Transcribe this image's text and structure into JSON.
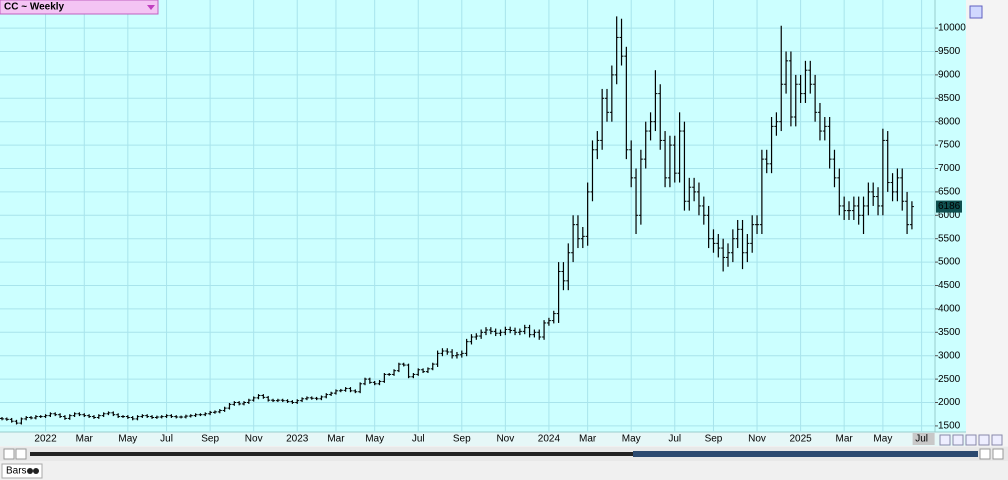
{
  "chart_data": {
    "type": "ohlc",
    "title": "CC ~ Weekly",
    "status_label": "Bars",
    "ylim": [
      1370,
      10600
    ],
    "yticks": [
      1500,
      2000,
      2500,
      3000,
      3500,
      4000,
      4500,
      5000,
      5500,
      6000,
      6500,
      7000,
      7500,
      8000,
      8500,
      9000,
      9500,
      10000
    ],
    "grid": true,
    "color": "#000000",
    "background": "#ccffff",
    "year_label_color": "#1a1aaa",
    "categories": [
      null,
      null,
      null,
      null,
      null,
      null,
      null,
      null,
      null,
      "2022",
      null,
      null,
      null,
      null,
      null,
      null,
      null,
      "Mar",
      null,
      null,
      null,
      null,
      null,
      null,
      null,
      null,
      "May",
      null,
      null,
      null,
      null,
      null,
      null,
      null,
      "Jul",
      null,
      null,
      null,
      null,
      null,
      null,
      null,
      null,
      "Sep",
      null,
      null,
      null,
      null,
      null,
      null,
      null,
      null,
      "Nov",
      null,
      null,
      null,
      null,
      null,
      null,
      null,
      null,
      "2023",
      null,
      null,
      null,
      null,
      null,
      null,
      null,
      "Mar",
      null,
      null,
      null,
      null,
      null,
      null,
      null,
      "May",
      null,
      null,
      null,
      null,
      null,
      null,
      null,
      null,
      "Jul",
      null,
      null,
      null,
      null,
      null,
      null,
      null,
      null,
      "Sep",
      null,
      null,
      null,
      null,
      null,
      null,
      null,
      null,
      "Nov",
      null,
      null,
      null,
      null,
      null,
      null,
      null,
      null,
      "2024",
      null,
      null,
      null,
      null,
      null,
      null,
      null,
      "Mar",
      null,
      null,
      null,
      null,
      null,
      null,
      null,
      null,
      "May",
      null,
      null,
      null,
      null,
      null,
      null,
      null,
      null,
      "Jul",
      null,
      null,
      null,
      null,
      null,
      null,
      null,
      "Sep",
      null,
      null,
      null,
      null,
      null,
      null,
      null,
      null,
      "Nov",
      null,
      null,
      null,
      null,
      null,
      null,
      null,
      null,
      "2025",
      null,
      null,
      null,
      null,
      null,
      null,
      null,
      null,
      "Mar",
      null,
      null,
      null,
      null,
      null,
      null,
      null,
      "May",
      null,
      null,
      null,
      null,
      null,
      null,
      null,
      "Jul"
    ],
    "open": [
      1660,
      1650,
      1640,
      1600,
      1560,
      1650,
      1680,
      1670,
      1700,
      1700,
      1720,
      1760,
      1740,
      1700,
      1660,
      1720,
      1760,
      1740,
      1720,
      1700,
      1680,
      1720,
      1760,
      1780,
      1740,
      1700,
      1700,
      1680,
      1650,
      1700,
      1720,
      1700,
      1680,
      1690,
      1700,
      1720,
      1700,
      1690,
      1690,
      1710,
      1720,
      1740,
      1740,
      1760,
      1790,
      1800,
      1830,
      1880,
      1960,
      2000,
      1970,
      2000,
      2050,
      2100,
      2150,
      2110,
      2050,
      2040,
      2050,
      2040,
      2020,
      2000,
      2040,
      2080,
      2100,
      2090,
      2080,
      2120,
      2170,
      2200,
      2250,
      2260,
      2300,
      2250,
      2230,
      2400,
      2500,
      2430,
      2400,
      2450,
      2600,
      2600,
      2680,
      2820,
      2800,
      2550,
      2600,
      2700,
      2660,
      2720,
      2820,
      3050,
      3100,
      3080,
      3000,
      3020,
      3050,
      3300,
      3400,
      3420,
      3500,
      3550,
      3520,
      3480,
      3500,
      3560,
      3540,
      3500,
      3520,
      3600,
      3450,
      3500,
      3400,
      3700,
      3750,
      3900,
      4800,
      4600,
      5200,
      5800,
      5500,
      5550,
      6500,
      7400,
      7600,
      8500,
      8200,
      9000,
      9800,
      9400,
      7400,
      6800,
      6000,
      7200,
      7800,
      8000,
      8600,
      7600,
      6800,
      7500,
      6900,
      7800,
      6300,
      6600,
      6500,
      6200,
      6000,
      5500,
      5400,
      5300,
      5100,
      5200,
      5500,
      5700,
      5200,
      5400,
      5800,
      5800,
      7200,
      7100,
      7900,
      8000,
      8800,
      9300,
      8100,
      8800,
      8600,
      9100,
      8800,
      8200,
      7800,
      7900,
      7200,
      6800,
      6200,
      6100,
      6100,
      6200,
      6000,
      6200,
      6500,
      6400,
      6200,
      7600,
      6700,
      6500,
      6800,
      6300,
      5800,
      null,
      null
    ],
    "high": [
      1690,
      1680,
      1670,
      1630,
      1680,
      1710,
      1710,
      1730,
      1730,
      1750,
      1790,
      1790,
      1770,
      1730,
      1750,
      1790,
      1790,
      1770,
      1750,
      1730,
      1750,
      1790,
      1810,
      1810,
      1770,
      1730,
      1730,
      1710,
      1730,
      1750,
      1750,
      1730,
      1720,
      1730,
      1750,
      1750,
      1730,
      1720,
      1740,
      1750,
      1770,
      1770,
      1790,
      1820,
      1830,
      1860,
      1910,
      1990,
      2030,
      2030,
      2030,
      2080,
      2130,
      2180,
      2180,
      2140,
      2080,
      2080,
      2080,
      2070,
      2050,
      2070,
      2110,
      2130,
      2130,
      2120,
      2150,
      2200,
      2230,
      2280,
      2290,
      2330,
      2330,
      2280,
      2430,
      2530,
      2530,
      2460,
      2480,
      2630,
      2630,
      2710,
      2850,
      2850,
      2830,
      2630,
      2730,
      2730,
      2750,
      2850,
      3110,
      3160,
      3160,
      3140,
      3080,
      3110,
      3360,
      3460,
      3480,
      3560,
      3610,
      3610,
      3580,
      3560,
      3620,
      3620,
      3600,
      3580,
      3660,
      3660,
      3560,
      3560,
      3760,
      3810,
      3960,
      5000,
      5000,
      5400,
      6000,
      6000,
      5750,
      6700,
      7600,
      7800,
      8700,
      8700,
      9200,
      10250,
      10200,
      9600,
      7600,
      7000,
      7400,
      8000,
      8200,
      9100,
      8800,
      7800,
      7700,
      7700,
      8200,
      8000,
      6800,
      6800,
      6700,
      6400,
      6200,
      5700,
      5600,
      5500,
      5400,
      5700,
      5900,
      5900,
      5600,
      6000,
      6000,
      7400,
      7400,
      8100,
      8200,
      10050,
      9500,
      9500,
      9000,
      9000,
      9300,
      9300,
      9000,
      8400,
      8100,
      8100,
      7400,
      7000,
      6400,
      6300,
      6400,
      6400,
      6400,
      6700,
      6700,
      6600,
      7850,
      7800,
      6900,
      7000,
      7000,
      6500,
      6300,
      null,
      null
    ],
    "low": [
      1620,
      1610,
      1570,
      1530,
      1530,
      1620,
      1640,
      1640,
      1670,
      1670,
      1690,
      1710,
      1670,
      1630,
      1630,
      1690,
      1710,
      1690,
      1670,
      1650,
      1650,
      1690,
      1730,
      1710,
      1670,
      1670,
      1650,
      1620,
      1620,
      1670,
      1670,
      1650,
      1650,
      1660,
      1670,
      1670,
      1660,
      1660,
      1660,
      1680,
      1690,
      1710,
      1710,
      1730,
      1760,
      1770,
      1800,
      1850,
      1930,
      1940,
      1940,
      1970,
      2020,
      2070,
      2080,
      2020,
      2010,
      2010,
      2010,
      1990,
      1970,
      1970,
      2010,
      2050,
      2060,
      2050,
      2050,
      2090,
      2140,
      2170,
      2220,
      2230,
      2220,
      2200,
      2200,
      2370,
      2400,
      2370,
      2370,
      2420,
      2570,
      2570,
      2650,
      2770,
      2520,
      2520,
      2570,
      2630,
      2630,
      2690,
      2760,
      2990,
      3020,
      2940,
      2940,
      2960,
      2990,
      3240,
      3340,
      3360,
      3440,
      3460,
      3420,
      3420,
      3440,
      3480,
      3440,
      3440,
      3460,
      3390,
      3390,
      3340,
      3340,
      3640,
      3690,
      3700,
      4400,
      4400,
      5000,
      5300,
      5300,
      5350,
      6300,
      7200,
      7400,
      8000,
      8000,
      8800,
      9200,
      7200,
      6600,
      5600,
      5800,
      7000,
      7600,
      7800,
      7400,
      6600,
      6600,
      6700,
      6700,
      6100,
      6100,
      6300,
      6000,
      5800,
      5300,
      5200,
      5100,
      4800,
      4900,
      5000,
      5300,
      4850,
      5000,
      5200,
      5600,
      5600,
      6900,
      6900,
      7700,
      7800,
      8600,
      7900,
      7900,
      8400,
      8400,
      8600,
      8000,
      7600,
      7600,
      7000,
      6600,
      6000,
      5900,
      5900,
      5900,
      5800,
      5600,
      6000,
      6200,
      6000,
      6000,
      6500,
      6300,
      6300,
      6100,
      5600,
      5700,
      null,
      null
    ],
    "close": [
      1650,
      1640,
      1600,
      1560,
      1650,
      1680,
      1670,
      1700,
      1700,
      1720,
      1760,
      1740,
      1700,
      1660,
      1720,
      1760,
      1740,
      1720,
      1700,
      1680,
      1720,
      1760,
      1780,
      1740,
      1700,
      1700,
      1680,
      1650,
      1700,
      1720,
      1700,
      1680,
      1690,
      1700,
      1720,
      1700,
      1690,
      1690,
      1710,
      1720,
      1740,
      1740,
      1760,
      1790,
      1800,
      1830,
      1880,
      1960,
      2000,
      1970,
      2000,
      2050,
      2100,
      2150,
      2110,
      2050,
      2040,
      2050,
      2040,
      2020,
      2000,
      2040,
      2080,
      2100,
      2090,
      2080,
      2120,
      2170,
      2200,
      2250,
      2260,
      2300,
      2250,
      2230,
      2400,
      2500,
      2430,
      2400,
      2450,
      2600,
      2600,
      2680,
      2820,
      2800,
      2550,
      2600,
      2700,
      2660,
      2720,
      2820,
      3050,
      3100,
      3080,
      3000,
      3020,
      3050,
      3300,
      3400,
      3420,
      3500,
      3550,
      3520,
      3480,
      3500,
      3560,
      3540,
      3500,
      3520,
      3600,
      3450,
      3500,
      3400,
      3700,
      3750,
      3900,
      4800,
      4600,
      5200,
      5800,
      5500,
      5550,
      6500,
      7400,
      7600,
      8500,
      8200,
      9000,
      9800,
      9400,
      7400,
      6800,
      6000,
      7200,
      7800,
      8000,
      8600,
      7600,
      6800,
      7500,
      6900,
      7800,
      6300,
      6600,
      6500,
      6200,
      6000,
      5500,
      5400,
      5300,
      5100,
      5200,
      5500,
      5700,
      5200,
      5400,
      5800,
      5800,
      7200,
      7100,
      7900,
      8000,
      8800,
      9300,
      8100,
      8800,
      8600,
      9100,
      8800,
      8200,
      7800,
      7900,
      7200,
      6800,
      6200,
      6100,
      6100,
      6200,
      6000,
      6200,
      6500,
      6400,
      6200,
      7600,
      6700,
      6500,
      6800,
      6300,
      5800,
      6186,
      null,
      null
    ]
  }
}
